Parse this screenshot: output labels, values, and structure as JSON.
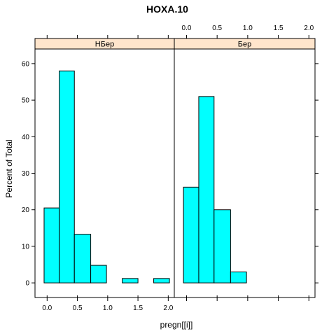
{
  "chart_data": {
    "type": "bar",
    "title": "HOXA.10",
    "xlabel": "pregn[[i]]",
    "ylabel": "Percent of Total",
    "xlim": [
      -0.2,
      2.1
    ],
    "ylim": [
      -4,
      64
    ],
    "x_ticks": [
      0.0,
      0.5,
      1.0,
      1.5,
      2.0
    ],
    "x_tick_labels": [
      "0.0",
      "0.5",
      "1.0",
      "1.5",
      "2.0"
    ],
    "y_ticks": [
      0,
      10,
      20,
      30,
      40,
      50,
      60
    ],
    "y_tick_labels": [
      "0",
      "10",
      "20",
      "30",
      "40",
      "50",
      "60"
    ],
    "bar_color": "#00ffff",
    "strip_color": "#ffe5cc",
    "panels": [
      {
        "strip_label": "НБер",
        "bins": [
          {
            "x0": -0.05,
            "x1": 0.2,
            "value": 20.5
          },
          {
            "x0": 0.2,
            "x1": 0.45,
            "value": 58.0
          },
          {
            "x0": 0.45,
            "x1": 0.72,
            "value": 13.3
          },
          {
            "x0": 0.72,
            "x1": 0.98,
            "value": 4.8
          },
          {
            "x0": 0.98,
            "x1": 1.24,
            "value": 0
          },
          {
            "x0": 1.24,
            "x1": 1.5,
            "value": 1.2
          },
          {
            "x0": 1.5,
            "x1": 1.76,
            "value": 0
          },
          {
            "x0": 1.76,
            "x1": 2.02,
            "value": 1.2
          }
        ]
      },
      {
        "strip_label": "Бер",
        "bins": [
          {
            "x0": -0.05,
            "x1": 0.2,
            "value": 26.2
          },
          {
            "x0": 0.2,
            "x1": 0.45,
            "value": 51.0
          },
          {
            "x0": 0.45,
            "x1": 0.72,
            "value": 20.0
          },
          {
            "x0": 0.72,
            "x1": 0.98,
            "value": 3.0
          },
          {
            "x0": 0.98,
            "x1": 1.24,
            "value": 0
          },
          {
            "x0": 1.24,
            "x1": 1.5,
            "value": 0
          },
          {
            "x0": 1.5,
            "x1": 1.76,
            "value": 0
          },
          {
            "x0": 1.76,
            "x1": 2.02,
            "value": 0
          }
        ]
      }
    ]
  }
}
